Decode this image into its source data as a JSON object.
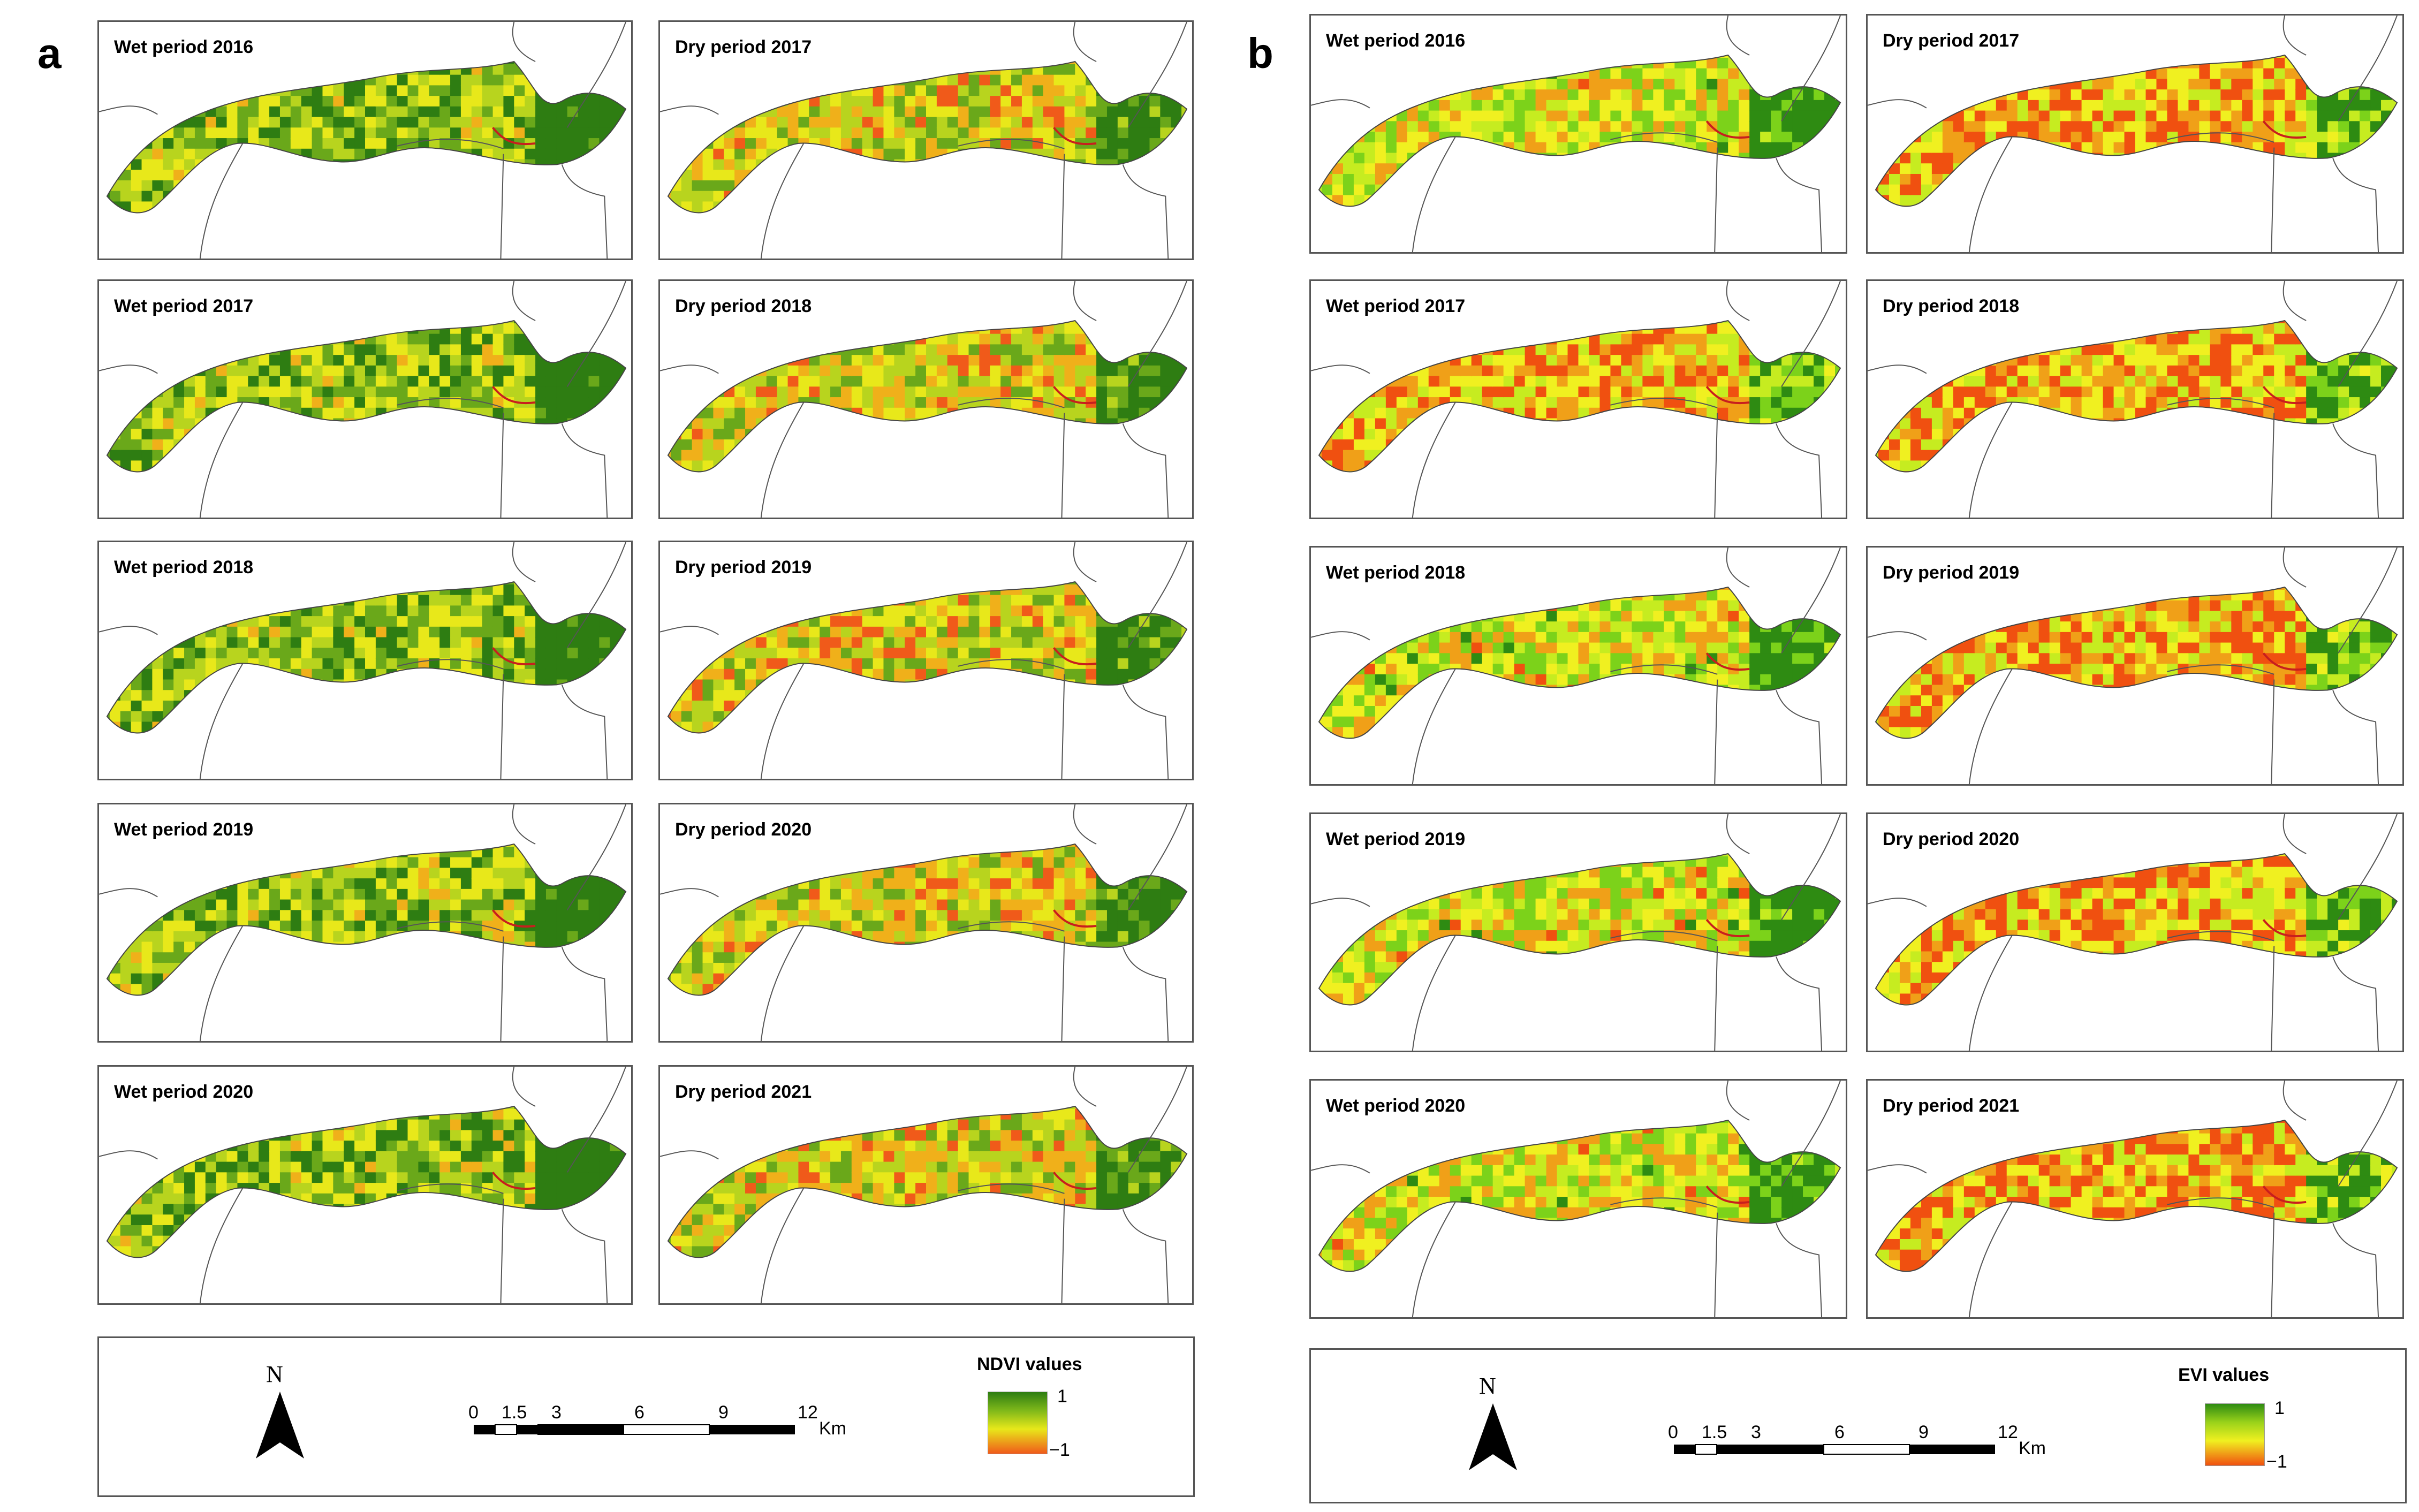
{
  "figure": {
    "panel_a_label": "a",
    "panel_b_label": "b"
  },
  "panel_a": {
    "index_name": "NDVI",
    "maps": [
      {
        "title": "Wet period 2016"
      },
      {
        "title": "Dry period 2017"
      },
      {
        "title": "Wet period 2017"
      },
      {
        "title": "Dry period 2018"
      },
      {
        "title": "Wet period 2018"
      },
      {
        "title": "Dry period 2019"
      },
      {
        "title": "Wet period 2019"
      },
      {
        "title": "Dry period 2020"
      },
      {
        "title": "Wet period 2020"
      },
      {
        "title": "Dry period 2021"
      }
    ],
    "legend": {
      "title": "NDVI values",
      "max": "1",
      "min": "−1"
    },
    "north": "N",
    "scale": {
      "ticks": [
        "0",
        "1.5",
        "3",
        "6",
        "9",
        "12"
      ],
      "unit": "Km"
    }
  },
  "panel_b": {
    "index_name": "EVI",
    "maps": [
      {
        "title": "Wet period 2016"
      },
      {
        "title": "Dry period 2017"
      },
      {
        "title": "Wet period 2017"
      },
      {
        "title": "Dry period 2018"
      },
      {
        "title": "Wet period 2018"
      },
      {
        "title": "Dry period 2019"
      },
      {
        "title": "Wet period 2019"
      },
      {
        "title": "Dry period 2020"
      },
      {
        "title": "Wet period 2020"
      },
      {
        "title": "Dry period 2021"
      }
    ],
    "legend": {
      "title": "EVI values",
      "max": "1",
      "min": "−1"
    },
    "north": "N",
    "scale": {
      "ticks": [
        "0",
        "1.5",
        "3",
        "6",
        "9",
        "12"
      ],
      "unit": "Km"
    }
  },
  "colors": {
    "ndvi_high": "#2e7d12",
    "ndvi_mid": "#e8e81a",
    "ndvi_low": "#f05a1a",
    "evi_high": "#2e8b12",
    "evi_mid": "#f0f020",
    "evi_low": "#f05010",
    "border": "#555555",
    "road": "#c81e1e"
  }
}
